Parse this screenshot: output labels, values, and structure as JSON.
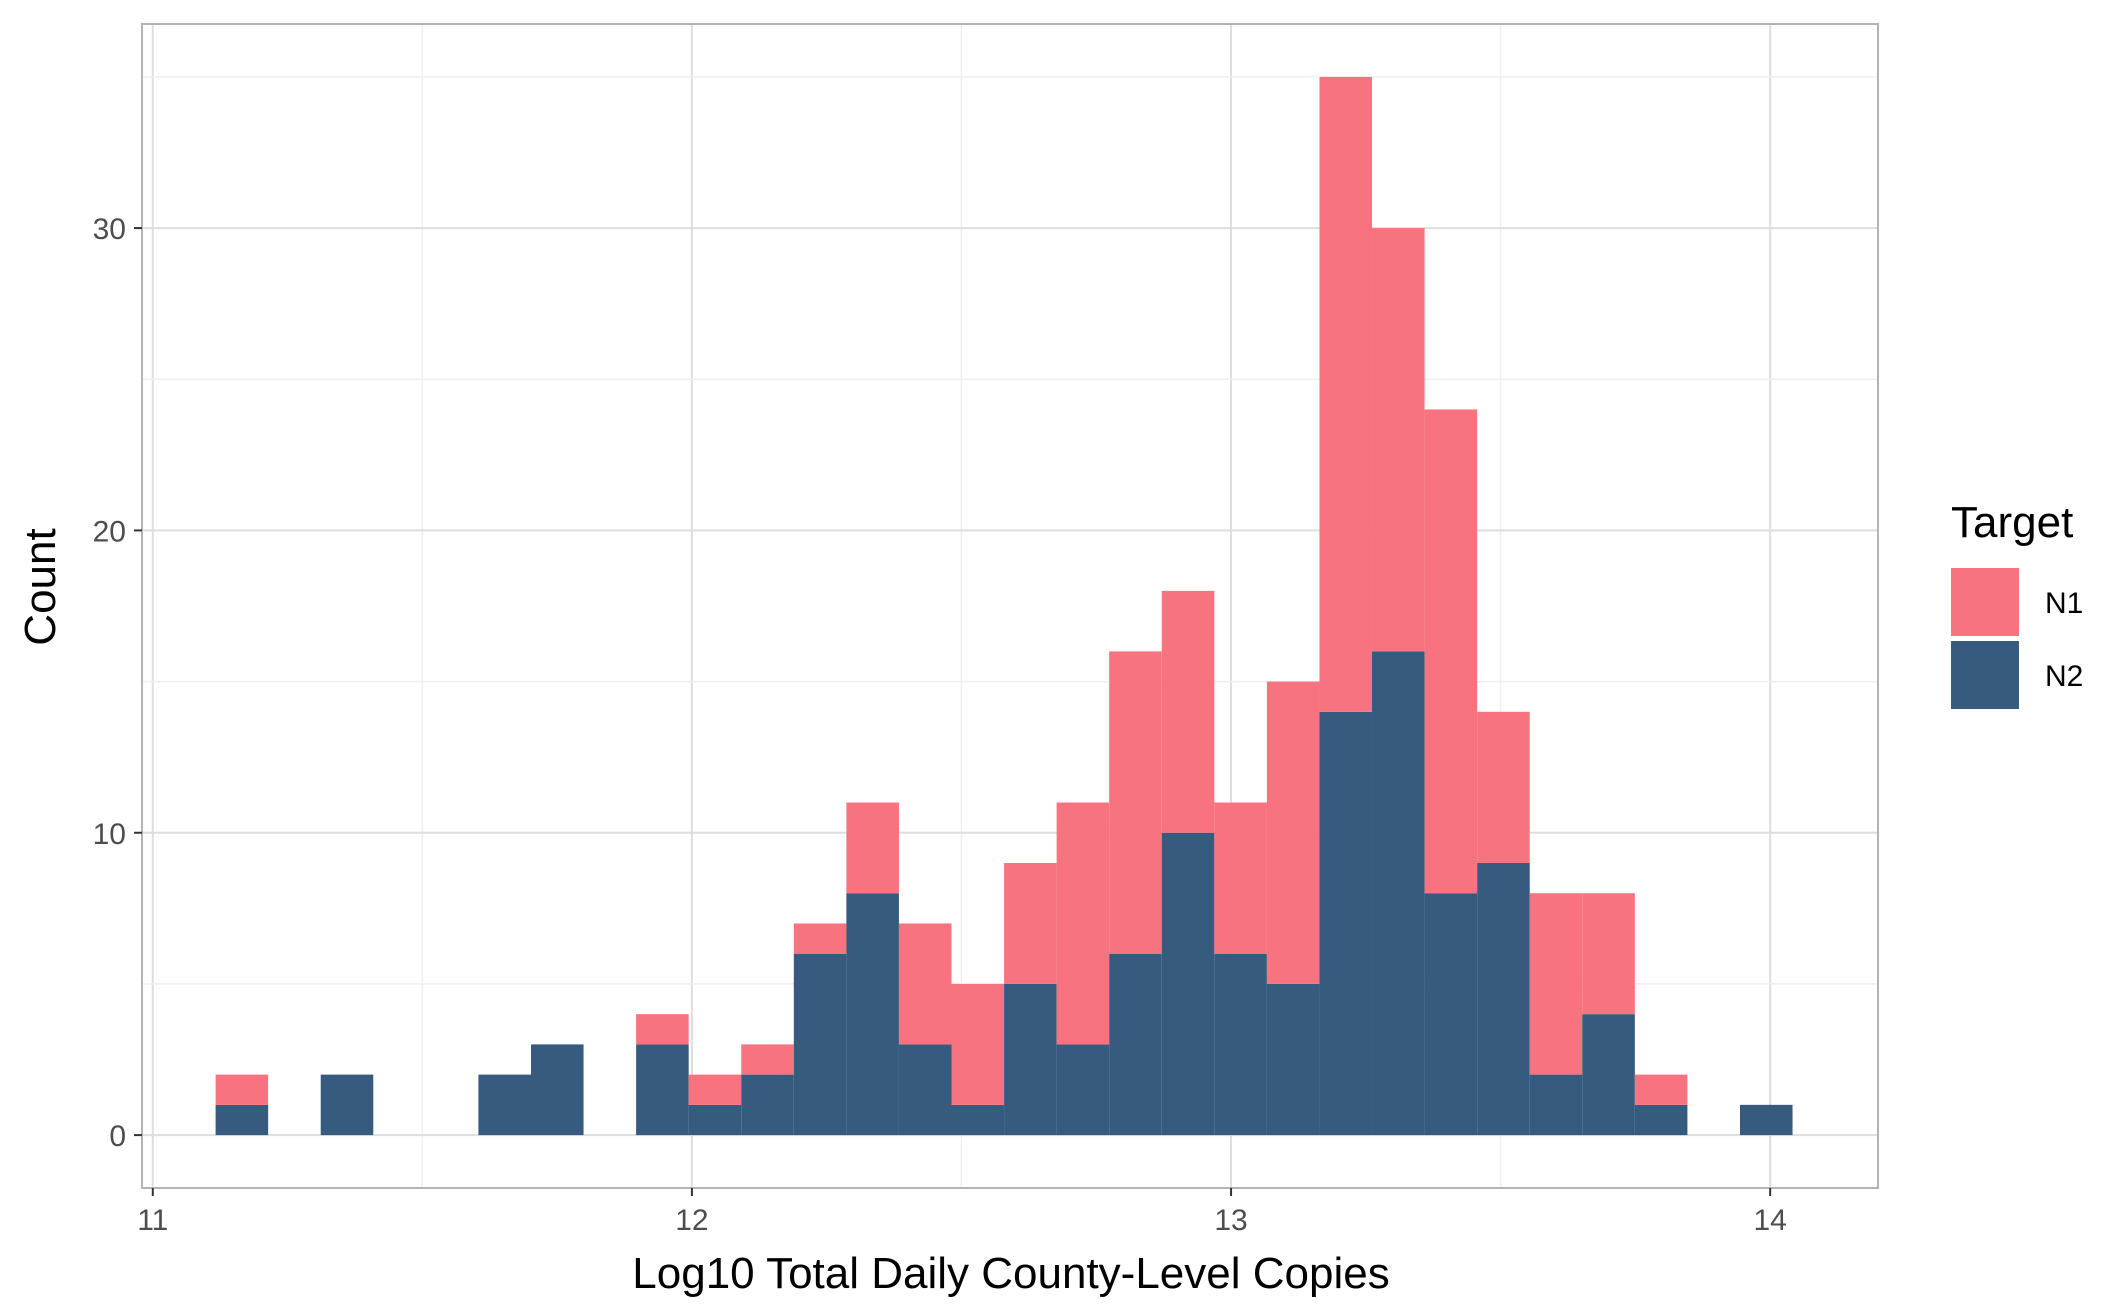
{
  "chart_data": {
    "type": "bar",
    "subtype": "stacked-histogram",
    "title": "",
    "xlabel": "Log10 Total Daily County-Level Copies",
    "ylabel": "Count",
    "xlim": [
      10.98,
      14.2
    ],
    "ylim": [
      -1.75,
      36.75
    ],
    "x_ticks": [
      11,
      12,
      13,
      14
    ],
    "y_ticks": [
      0,
      10,
      20,
      30
    ],
    "grid": true,
    "legend": {
      "title": "Target",
      "placement": "right"
    },
    "bin_width": 0.0975,
    "bins_left": [
      11.1165,
      11.214,
      11.3115,
      11.409,
      11.5065,
      11.604,
      11.7015,
      11.799,
      11.8965,
      11.994,
      12.0915,
      12.189,
      12.2865,
      12.384,
      12.4815,
      12.579,
      12.6765,
      12.774,
      12.8715,
      12.969,
      13.0665,
      13.164,
      13.2615,
      13.359,
      13.4565,
      13.554,
      13.6515,
      13.749,
      13.8465,
      13.944
    ],
    "series": [
      {
        "name": "N1",
        "color": "#F8766D",
        "values": [
          1,
          0,
          0,
          0,
          0,
          0,
          0,
          0,
          1,
          1,
          1,
          1,
          3,
          4,
          4,
          4,
          8,
          10,
          8,
          5,
          10,
          21,
          14,
          16,
          5,
          6,
          4,
          1,
          0,
          0
        ]
      },
      {
        "name": "N2",
        "color": "#375A7F",
        "values": [
          1,
          0,
          2,
          0,
          0,
          2,
          3,
          0,
          3,
          1,
          2,
          6,
          8,
          3,
          1,
          5,
          3,
          6,
          10,
          6,
          5,
          14,
          16,
          8,
          9,
          2,
          4,
          1,
          0,
          1
        ]
      }
    ]
  },
  "colors": {
    "n1": "#F7737F",
    "n2": "#375A7F",
    "panel_border": "#b3b3b3",
    "grid_major": "#dedede",
    "grid_minor": "#efefef"
  }
}
